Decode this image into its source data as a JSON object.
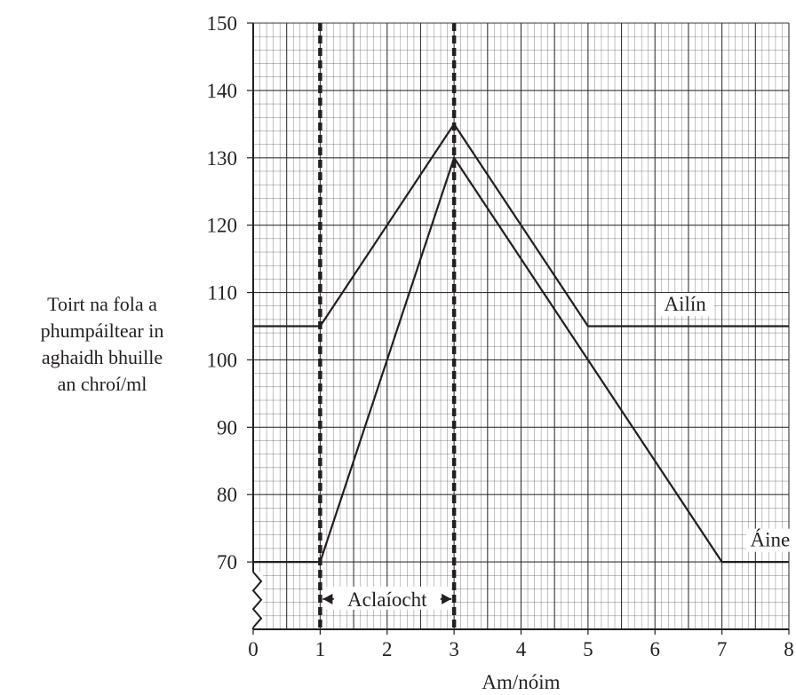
{
  "chart_data": {
    "type": "line",
    "xlabel": "Am/nóim",
    "ylabel_lines": [
      "Toirt na fola a",
      "phumpáiltear in",
      "aghaidh bhuille",
      "an chroí/ml"
    ],
    "x_ticks": [
      "0",
      "1",
      "2",
      "3",
      "4",
      "5",
      "6",
      "7",
      "8"
    ],
    "y_ticks": [
      "70",
      "80",
      "90",
      "100",
      "110",
      "120",
      "130",
      "140",
      "150"
    ],
    "xlim": [
      0,
      8
    ],
    "ylim": [
      60,
      150
    ],
    "y_axis_break": true,
    "grid": true,
    "series": [
      {
        "name": "Ailín",
        "x": [
          0,
          1,
          3,
          5,
          8
        ],
        "y": [
          105,
          105,
          135,
          105,
          105
        ]
      },
      {
        "name": "Áine",
        "x": [
          0,
          1,
          3,
          7,
          8
        ],
        "y": [
          70,
          70,
          130,
          70,
          70
        ]
      }
    ],
    "vlines": [
      1,
      3
    ],
    "interval_annotation": {
      "label": "Aclaíocht",
      "from": 1,
      "to": 3
    }
  },
  "colors": {
    "ink": "#231f20",
    "grid": "#231f20"
  }
}
